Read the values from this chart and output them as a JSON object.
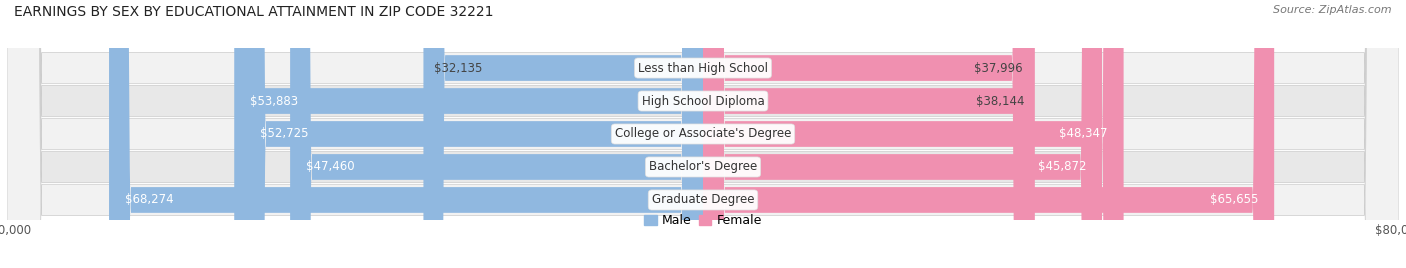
{
  "title": "EARNINGS BY SEX BY EDUCATIONAL ATTAINMENT IN ZIP CODE 32221",
  "source": "Source: ZipAtlas.com",
  "categories": [
    "Less than High School",
    "High School Diploma",
    "College or Associate's Degree",
    "Bachelor's Degree",
    "Graduate Degree"
  ],
  "male_values": [
    32135,
    53883,
    52725,
    47460,
    68274
  ],
  "female_values": [
    37996,
    38144,
    48347,
    45872,
    65655
  ],
  "male_labels": [
    "$32,135",
    "$53,883",
    "$52,725",
    "$47,460",
    "$68,274"
  ],
  "female_labels": [
    "$37,996",
    "$38,144",
    "$48,347",
    "$45,872",
    "$65,655"
  ],
  "male_color": "#90B8E0",
  "female_color": "#F090B0",
  "male_label_inside_threshold": 45000,
  "female_label_inside_threshold": 45000,
  "row_bg_light": "#F2F2F2",
  "row_bg_dark": "#E8E8E8",
  "x_max": 80000,
  "label_fontsize": 8.5,
  "title_fontsize": 10,
  "category_fontsize": 8.5,
  "source_fontsize": 8
}
